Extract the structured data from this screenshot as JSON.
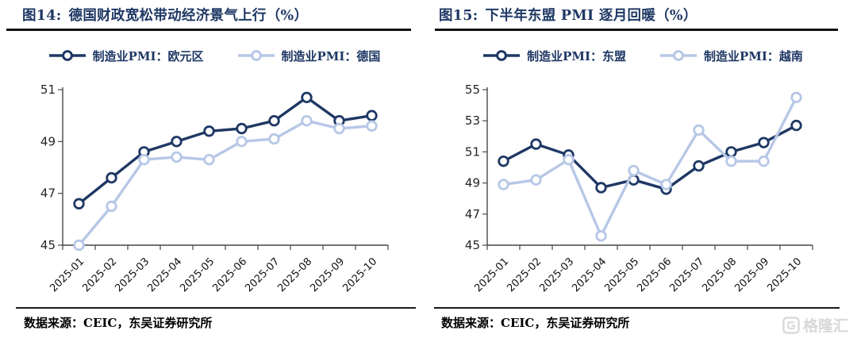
{
  "watermark": {
    "brand": "格隆汇",
    "color": "#d8d8d8"
  },
  "colors": {
    "title": "#1f3864",
    "accent_dark": "#1f3864",
    "accent_light": "#b7c7e6",
    "axis": "#474747",
    "underline": "#0d0d0d"
  },
  "panels": [
    {
      "figure_label": "图14:",
      "title": "德国财政宽松带动经济景气上行（%）",
      "source": "数据来源：CEIC，东吴证券研究所"
    },
    {
      "figure_label": "图15:",
      "title": "下半年东盟 PMI 逐月回暖（%）",
      "source": "数据来源：CEIC，东吴证券研究所"
    }
  ],
  "chart_data": [
    {
      "type": "line",
      "title": "图14: 德国财政宽松带动经济景气上行（%）",
      "categories": [
        "2025-01",
        "2025-02",
        "2025-03",
        "2025-04",
        "2025-05",
        "2025-06",
        "2025-07",
        "2025-08",
        "2025-09",
        "2025-10"
      ],
      "series": [
        {
          "name": "制造业PMI：欧元区",
          "color": "#1f3864",
          "values": [
            46.6,
            47.6,
            48.6,
            49.0,
            49.4,
            49.5,
            49.8,
            50.7,
            49.8,
            50.0
          ]
        },
        {
          "name": "制造业PMI：德国",
          "color": "#b7c7e6",
          "values": [
            45.0,
            46.5,
            48.3,
            48.4,
            48.3,
            49.0,
            49.1,
            49.8,
            49.5,
            49.6
          ]
        }
      ],
      "ylim": [
        45,
        51
      ],
      "yticks": [
        45,
        47,
        49,
        51
      ],
      "grid": false,
      "legend_position": "top",
      "marker": "open-circle",
      "source": "数据来源：CEIC，东吴证券研究所"
    },
    {
      "type": "line",
      "title": "图15: 下半年东盟 PMI 逐月回暖（%）",
      "categories": [
        "2025-01",
        "2025-02",
        "2025-03",
        "2025-04",
        "2025-05",
        "2025-06",
        "2025-07",
        "2025-08",
        "2025-09",
        "2025-10"
      ],
      "series": [
        {
          "name": "制造业PMI：东盟",
          "color": "#1f3864",
          "values": [
            50.4,
            51.5,
            50.8,
            48.7,
            49.2,
            48.6,
            50.1,
            51.0,
            51.6,
            52.7
          ]
        },
        {
          "name": "制造业PMI：越南",
          "color": "#b7c7e6",
          "values": [
            48.9,
            49.2,
            50.5,
            45.6,
            49.8,
            48.9,
            52.4,
            50.4,
            50.4,
            54.5
          ]
        }
      ],
      "ylim": [
        45,
        55
      ],
      "yticks": [
        45,
        47,
        49,
        51,
        53,
        55
      ],
      "grid": false,
      "legend_position": "top",
      "marker": "open-circle",
      "source": "数据来源：CEIC，东吴证券研究所"
    }
  ]
}
